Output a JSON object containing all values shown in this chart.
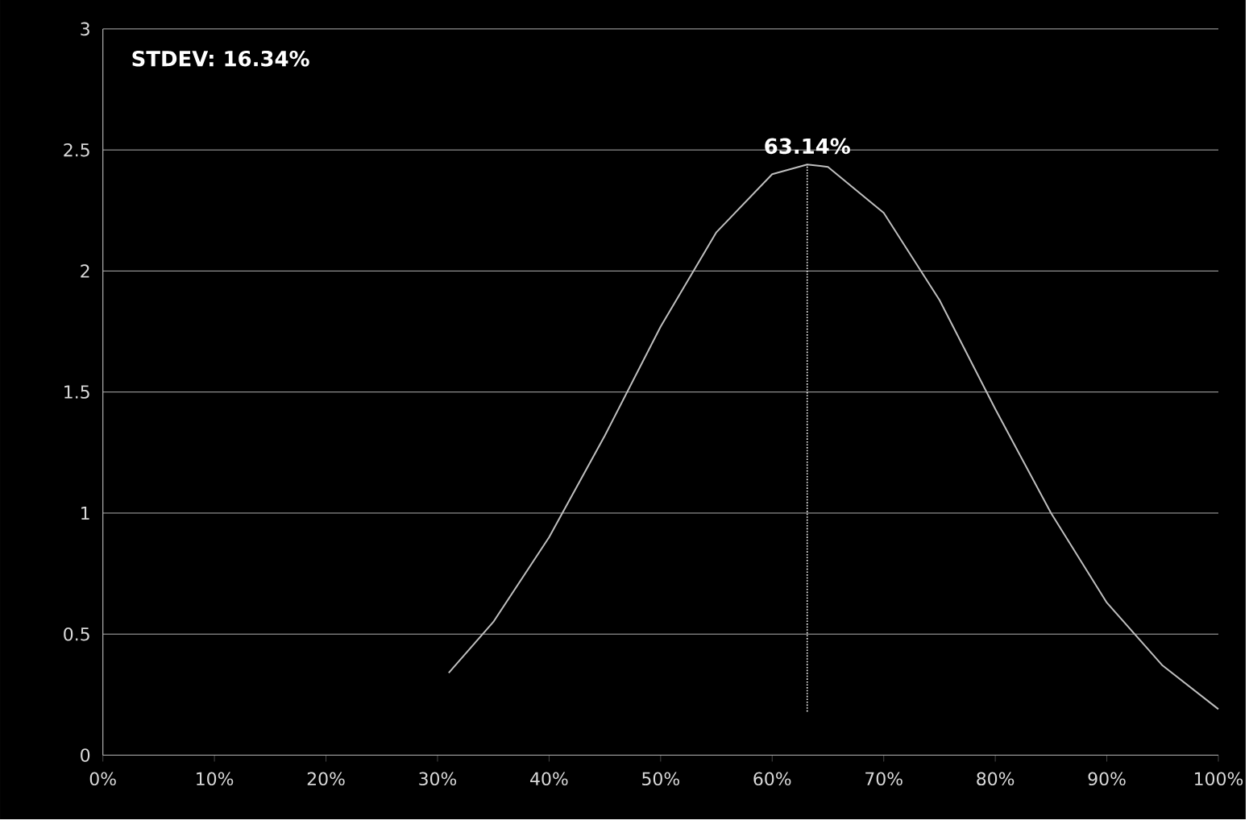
{
  "chart_data": {
    "type": "line",
    "annotations": [
      "STDEV: 16.34%"
    ],
    "x": [
      31,
      35,
      40,
      45,
      50,
      55,
      60,
      63.14,
      65,
      70,
      75,
      80,
      85,
      90,
      95,
      100
    ],
    "series": [
      {
        "color": "#bfbfbf",
        "values": [
          0.34,
          0.55,
          0.9,
          1.32,
          1.77,
          2.16,
          2.4,
          2.44,
          2.43,
          2.24,
          1.88,
          1.43,
          1.0,
          0.63,
          0.37,
          0.19
        ]
      }
    ],
    "xlim": [
      0,
      100
    ],
    "xticks": [
      {
        "value": 0,
        "label": "0%"
      },
      {
        "value": 10,
        "label": "10%"
      },
      {
        "value": 20,
        "label": "20%"
      },
      {
        "value": 30,
        "label": "30%"
      },
      {
        "value": 40,
        "label": "40%"
      },
      {
        "value": 50,
        "label": "50%"
      },
      {
        "value": 60,
        "label": "60%"
      },
      {
        "value": 70,
        "label": "70%"
      },
      {
        "value": 80,
        "label": "80%"
      },
      {
        "value": 90,
        "label": "90%"
      },
      {
        "value": 100,
        "label": "100%"
      }
    ],
    "ylim": [
      0,
      3
    ],
    "yticks": [
      0,
      0.5,
      1,
      1.5,
      2,
      2.5,
      3
    ],
    "ref_lines": [
      {
        "axis": "x",
        "value": 63.14,
        "label": "63.14%",
        "color": "#ffffff",
        "line_style": "dotted"
      }
    ],
    "grid": "y",
    "marker": "none",
    "line_style": "solid"
  }
}
